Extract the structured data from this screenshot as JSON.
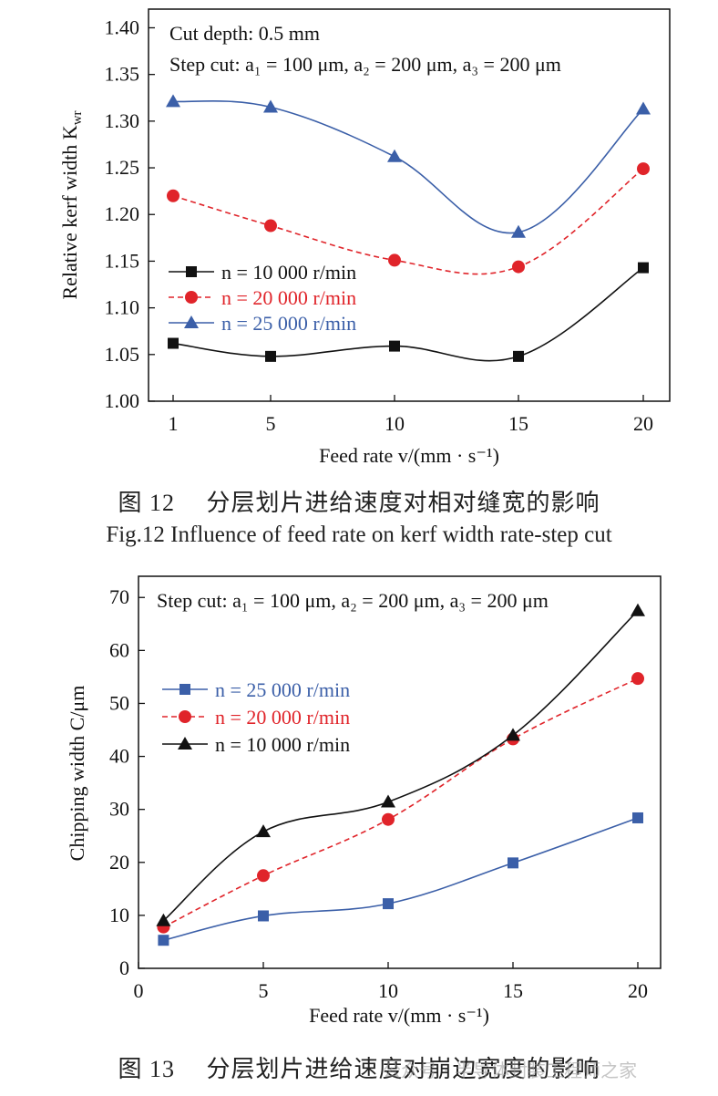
{
  "figure12": {
    "caption_cn": "图 12　 分层划片进给速度对相对缝宽的影响",
    "caption_en": "Fig.12 Influence of feed rate on kerf width rate-step cut",
    "chart_data": {
      "type": "line",
      "x": [
        1,
        5,
        10,
        15,
        20
      ],
      "x_ticks": [
        "1",
        "5",
        "10",
        "15",
        "20"
      ],
      "y_ticks": [
        "1.00",
        "1.05",
        "1.10",
        "1.15",
        "1.20",
        "1.25",
        "1.30",
        "1.35",
        "1.40"
      ],
      "ylim": [
        1.0,
        1.42
      ],
      "xlabel": "Feed rate v/(mm · s⁻¹)",
      "ylabel": "Relative kerf width K",
      "ylabel_sub": "wr",
      "annotation_1": "Cut depth: 0.5 mm",
      "annotation_2": "Step cut: a₁ = 100 μm, a₂ = 200 μm, a₃ = 200 μm",
      "legend_position": "left-center",
      "series": [
        {
          "name": "n = 10 000 r/min",
          "color": "#111111",
          "marker": "square",
          "dash": "none",
          "values": [
            1.062,
            1.048,
            1.059,
            1.048,
            1.143
          ]
        },
        {
          "name": "n = 20 000 r/min",
          "color": "#e0242a",
          "marker": "circle",
          "dash": "dash",
          "values": [
            1.22,
            1.188,
            1.151,
            1.144,
            1.249
          ]
        },
        {
          "name": "n = 25 000 r/min",
          "color": "#3b5fa8",
          "marker": "triangle",
          "dash": "none",
          "values": [
            1.321,
            1.315,
            1.262,
            1.181,
            1.313
          ]
        }
      ]
    }
  },
  "figure13": {
    "caption_cn": "图 13　 分层划片进给速度对崩边宽度的影响",
    "watermark": "公众号 · 半导体封装工程师之家",
    "chart_data": {
      "type": "line",
      "x": [
        1,
        5,
        10,
        15,
        20
      ],
      "x_ticks": [
        "0",
        "5",
        "10",
        "15",
        "20"
      ],
      "x_tick_values": [
        0,
        5,
        10,
        15,
        20
      ],
      "xlim": [
        0,
        21
      ],
      "y_ticks": [
        "0",
        "10",
        "20",
        "30",
        "40",
        "50",
        "60",
        "70"
      ],
      "ylim": [
        0,
        74
      ],
      "xlabel": "Feed rate v/(mm · s⁻¹)",
      "ylabel": "Chipping width C/μm",
      "annotation_1": "Step cut: a₁ = 100 μm, a₂ = 200 μm, a₃ = 200 μm",
      "legend_position": "left-center",
      "series": [
        {
          "name": "n = 25 000 r/min",
          "color": "#3b5fa8",
          "marker": "square",
          "dash": "none",
          "values": [
            5.3,
            9.9,
            12.2,
            19.9,
            28.4
          ]
        },
        {
          "name": "n = 20 000 r/min",
          "color": "#e0242a",
          "marker": "circle",
          "dash": "dash",
          "values": [
            7.8,
            17.5,
            28.1,
            43.3,
            54.7
          ]
        },
        {
          "name": "n = 10 000 r/min",
          "color": "#111111",
          "marker": "triangle",
          "dash": "none",
          "values": [
            9.0,
            25.8,
            31.4,
            44.0,
            67.5
          ]
        }
      ]
    }
  }
}
